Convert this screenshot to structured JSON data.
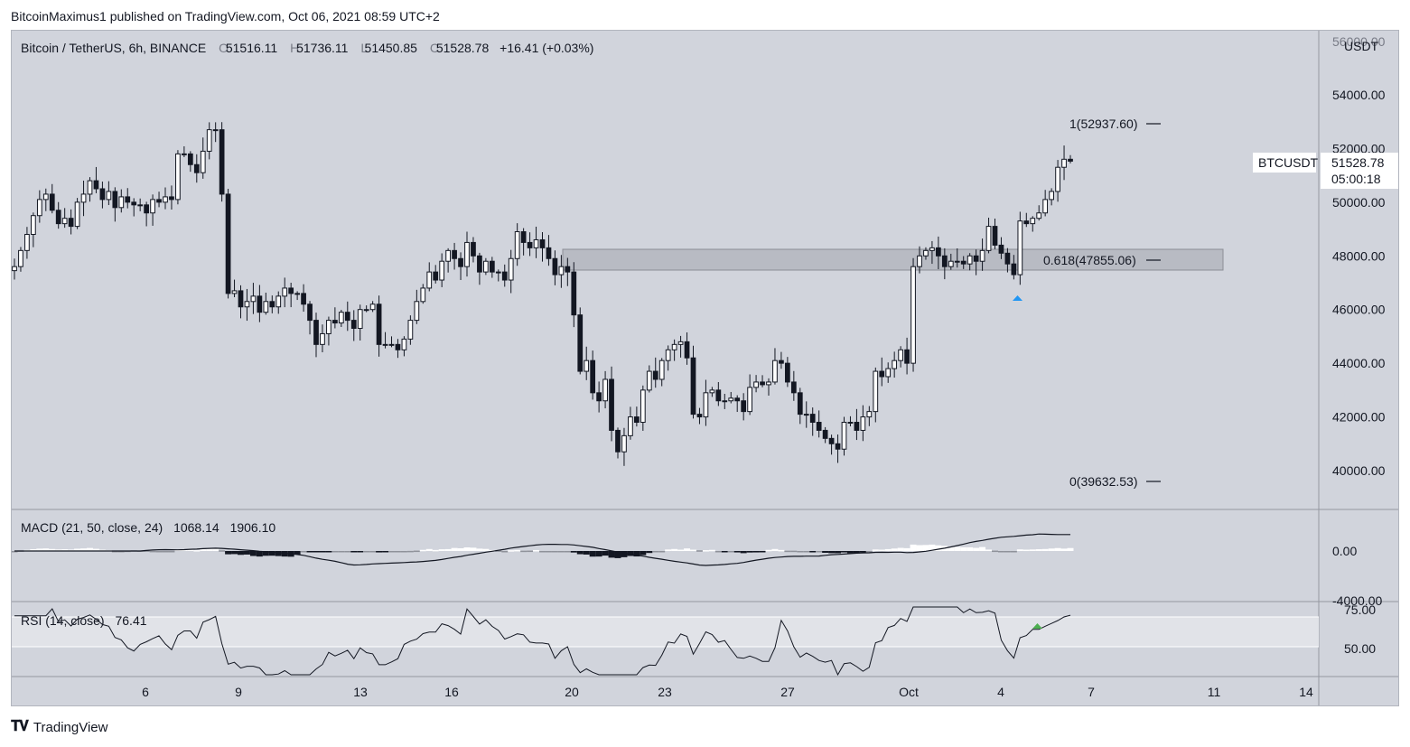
{
  "publisher_line": "BitcoinMaximus1 published on TradingView.com, Oct 06, 2021 08:59 UTC+2",
  "footer_brand": "TradingView",
  "colors": {
    "background": "#d1d4dc",
    "up_candle": "#ffffff",
    "down_candle": "#131722",
    "zone": "#b8bbc3",
    "rsi_band": "#e1e3e8",
    "up_arrow_blue": "#2196f3",
    "up_arrow_green": "#4caf50"
  },
  "header": {
    "symbol": "Bitcoin / TetherUS, 6h, BINANCE",
    "open_label": "O",
    "open": "51516.11",
    "high_label": "H",
    "high": "51736.11",
    "low_label": "L",
    "low": "51450.85",
    "close_label": "C",
    "close": "51528.78",
    "change": "+16.41 (+0.03%)"
  },
  "price_scale": {
    "currency": "USDT",
    "top_partial": "56000.00",
    "ticks": [
      "54000.00",
      "52000.00",
      "50000.00",
      "48000.00",
      "46000.00",
      "44000.00",
      "42000.00",
      "40000.00"
    ]
  },
  "last_price": {
    "symbol": "BTCUSDT",
    "price": "51528.78",
    "countdown": "05:00:18"
  },
  "fib_levels": [
    {
      "label": "1(52937.60)",
      "value": 52937.6
    },
    {
      "label": "0.618(47855.06)",
      "value": 47855.06
    },
    {
      "label": "0(39632.53)",
      "value": 39632.53
    }
  ],
  "x_axis_labels": [
    "6",
    "9",
    "13",
    "16",
    "20",
    "23",
    "27",
    "Oct",
    "4",
    "7",
    "11",
    "14"
  ],
  "macd": {
    "title": "MACD (21, 50, close, 24)",
    "value1": "1068.14",
    "value2": "1906.10",
    "ticks": [
      "0.00",
      "-4000.00"
    ]
  },
  "rsi": {
    "title": "RSI (14, close)",
    "value": "76.41",
    "ticks": [
      "75.00",
      "50.00"
    ]
  },
  "chart_data": [
    {
      "type": "candlestick",
      "title": "Bitcoin / TetherUS, 6h, BINANCE",
      "ylim": [
        38900,
        56200
      ],
      "yaxis_ticks": [
        40000,
        42000,
        44000,
        46000,
        48000,
        50000,
        52000,
        54000
      ],
      "x_ticks": [
        "6",
        "9",
        "13",
        "16",
        "20",
        "23",
        "27",
        "Oct",
        "4",
        "7",
        "11",
        "14"
      ],
      "closes": [
        47600,
        48200,
        48800,
        49500,
        50100,
        50300,
        49700,
        49200,
        49400,
        49100,
        50000,
        50300,
        50800,
        50500,
        50100,
        50400,
        49800,
        50200,
        50000,
        49900,
        49900,
        49600,
        50100,
        50000,
        50200,
        50100,
        51800,
        51800,
        51400,
        51100,
        51900,
        52700,
        52700,
        50300,
        46600,
        46700,
        46100,
        46300,
        46500,
        45900,
        46300,
        46100,
        46500,
        46800,
        46600,
        46600,
        46200,
        45600,
        44700,
        45100,
        45600,
        45500,
        45900,
        45600,
        45300,
        46000,
        46000,
        46200,
        44700,
        44700,
        44700,
        44500,
        44900,
        45600,
        46300,
        46800,
        47400,
        47100,
        47800,
        48200,
        47900,
        47600,
        48500,
        48000,
        47400,
        47800,
        47400,
        47400,
        47100,
        47900,
        48900,
        48500,
        48300,
        48600,
        48300,
        47900,
        47300,
        47600,
        47400,
        45800,
        43700,
        44100,
        42900,
        42600,
        43400,
        41500,
        40700,
        41300,
        42000,
        41800,
        43000,
        43700,
        43400,
        44100,
        44500,
        44700,
        44800,
        44200,
        42100,
        42000,
        42900,
        43000,
        42600,
        42600,
        42700,
        42600,
        42200,
        43100,
        43300,
        43200,
        43300,
        44100,
        44000,
        43300,
        42900,
        42100,
        42100,
        41800,
        41500,
        41200,
        41000,
        40800,
        41800,
        41800,
        41500,
        42000,
        42200,
        43700,
        43500,
        43800,
        44100,
        44500,
        44000,
        47600,
        48000,
        48200,
        48300,
        48000,
        47600,
        47800,
        47800,
        47700,
        48000,
        47800,
        48200,
        49100,
        48400,
        48100,
        47700,
        47300,
        49300,
        49200,
        49400,
        49600,
        50100,
        50400,
        51300,
        51600,
        51529
      ],
      "zone": {
        "from": 47400,
        "to": 48200,
        "label": "0.618(47855.06)"
      },
      "fib_levels": [
        52937.6,
        47855.06,
        39632.53
      ]
    },
    {
      "type": "bar",
      "title": "MACD (21, 50, close, 24)",
      "ylim": [
        -4000,
        4000
      ],
      "yaxis_ticks": [
        0,
        -4000
      ],
      "last_values": [
        1068.14,
        1906.1
      ]
    },
    {
      "type": "line",
      "title": "RSI (14, close)",
      "ylim": [
        35,
        85
      ],
      "yaxis_ticks": [
        75,
        50
      ],
      "last_value": 76.41
    }
  ]
}
